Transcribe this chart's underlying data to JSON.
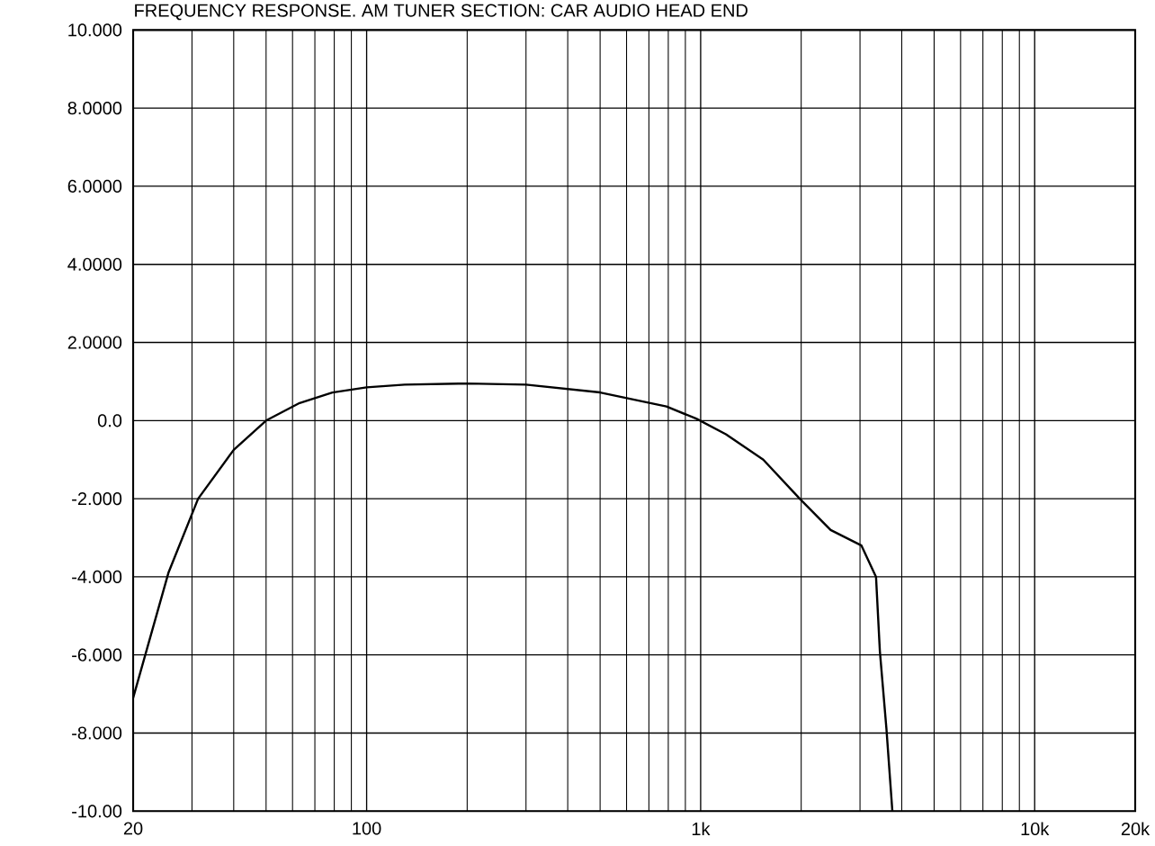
{
  "chart_data": {
    "type": "line",
    "title": "FREQUENCY RESPONSE. AM TUNER SECTION: CAR AUDIO HEAD END",
    "x": [
      20,
      25.5,
      31.3,
      40,
      50,
      63,
      79,
      100,
      130,
      200,
      300,
      500,
      790,
      970,
      1190,
      1540,
      1980,
      2450,
      3030,
      3350,
      3440,
      3600,
      3750
    ],
    "series": [
      {
        "color": "#000000",
        "values": [
          -7.1,
          -3.9,
          -2.0,
          -0.75,
          0.0,
          0.45,
          0.72,
          0.85,
          0.92,
          0.95,
          0.92,
          0.72,
          0.36,
          0.05,
          -0.35,
          -1.0,
          -2.0,
          -2.8,
          -3.2,
          -4.0,
          -5.9,
          -7.9,
          -10.0
        ]
      }
    ],
    "log": "x",
    "xlim": [
      20,
      20000
    ],
    "xticks": [
      20,
      100,
      {
        "value": 1000,
        "label": "1k"
      },
      {
        "value": 10000,
        "label": "10k"
      },
      {
        "value": 20000,
        "label": "20k"
      }
    ],
    "ylim": [
      -10,
      10
    ],
    "yticks": [
      {
        "value": 10,
        "label": "10.000"
      },
      {
        "value": 8,
        "label": "8.0000"
      },
      {
        "value": 6,
        "label": "6.0000"
      },
      {
        "value": 4,
        "label": "4.0000"
      },
      {
        "value": 2,
        "label": "2.0000"
      },
      {
        "value": 0,
        "label": "0.0"
      },
      {
        "value": -2,
        "label": "-2.000"
      },
      {
        "value": -4,
        "label": "-4.000"
      },
      {
        "value": -6,
        "label": "-6.000"
      },
      {
        "value": -8,
        "label": "-8.000"
      },
      {
        "value": -10,
        "label": "-10.00"
      }
    ],
    "grid": true,
    "marker": "none",
    "line_style": "solid"
  }
}
